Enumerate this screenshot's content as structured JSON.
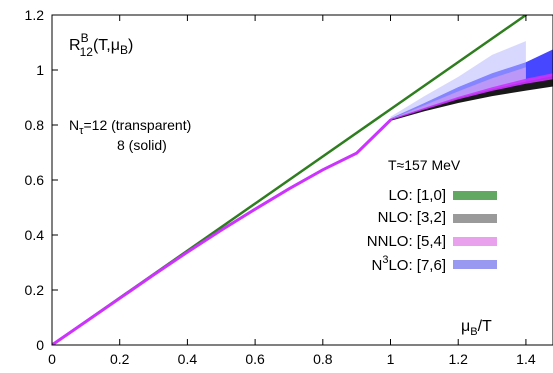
{
  "chart_data": {
    "type": "line",
    "xlabel_main": "μ",
    "xlabel_sub": "B",
    "xlabel_tail": "/T",
    "ylabel": {
      "main": "R",
      "sup": "B",
      "sub": "12",
      "tail_open": "(T,μ",
      "tail_sub": "B",
      "tail_close": ")"
    },
    "xlim": [
      0,
      1.48
    ],
    "ylim": [
      0,
      1.2
    ],
    "xticks": [
      0,
      0.2,
      0.4,
      0.6,
      0.8,
      1,
      1.2,
      1.4
    ],
    "xtick_labels": [
      "0",
      "0.2",
      "0.4",
      "0.6",
      "0.8",
      "1",
      "1.2",
      "1.4"
    ],
    "yticks": [
      0,
      0.2,
      0.4,
      0.6,
      0.8,
      1,
      1.2
    ],
    "ytick_labels": [
      "0",
      "0.2",
      "0.4",
      "0.6",
      "0.8",
      "1",
      "1.2"
    ],
    "annotations": {
      "ntau_line1_main": "N",
      "ntau_line1_sub": "τ",
      "ntau_line1_tail": "=12 (transparent)",
      "ntau_line2": "8 (solid)",
      "temperature": "T≈157 MeV"
    },
    "legend": {
      "position": "right",
      "entries": [
        {
          "label": "LO: [1,0]",
          "color": "#2e8b2e"
        },
        {
          "label": "NLO: [3,2]",
          "color": "#9a9a9a"
        },
        {
          "label": "NNLO: [5,4]",
          "color": "#e58ae8"
        },
        {
          "label_pre": "N",
          "label_sup": "3",
          "label_post": "LO: [7,6]",
          "color": "#8080ee"
        }
      ]
    },
    "series": [
      {
        "name": "LO: [1,0]",
        "color": "#2e7d1e",
        "x": [
          0,
          1.4
        ],
        "y": [
          0,
          1.2
        ]
      },
      {
        "name": "N3LO: [7,6]",
        "color": "#3333ff",
        "x": [
          1.0,
          1.1,
          1.2,
          1.3,
          1.4,
          1.48
        ],
        "lower": [
          0.818,
          0.858,
          0.895,
          0.925,
          0.953,
          0.972
        ],
        "upper": [
          0.824,
          0.88,
          0.938,
          0.988,
          1.028,
          1.075
        ]
      },
      {
        "name": "N3LO: [7,6] transparent",
        "color": "#b8b8ff",
        "x": [
          1.0,
          1.1,
          1.2,
          1.3,
          1.4
        ],
        "lower": [
          0.818,
          0.858,
          0.89,
          0.92,
          0.945
        ],
        "upper": [
          0.83,
          0.905,
          0.975,
          1.055,
          1.105
        ]
      },
      {
        "name": "NNLO: [5,4] transparent",
        "color": "#e8a8f0",
        "x": [
          1.0,
          1.1,
          1.2,
          1.3,
          1.4
        ],
        "lower": [
          0.818,
          0.858,
          0.895,
          0.928,
          0.96
        ],
        "upper": [
          0.822,
          0.872,
          0.922,
          0.97,
          1.01
        ]
      },
      {
        "name": "NLO: [3,2]",
        "color": "#000000",
        "x": [
          1.0,
          1.1,
          1.2,
          1.3,
          1.4,
          1.48
        ],
        "lower": [
          0.815,
          0.85,
          0.88,
          0.905,
          0.925,
          0.94
        ],
        "upper": [
          0.821,
          0.86,
          0.898,
          0.93,
          0.958,
          0.978
        ]
      },
      {
        "name": "NNLO: [5,4]",
        "color": "#cc33ff",
        "x": [
          1.0,
          1.1,
          1.2,
          1.3,
          1.4,
          1.48
        ],
        "lower": [
          0.817,
          0.856,
          0.893,
          0.924,
          0.95,
          0.966
        ],
        "upper": [
          0.821,
          0.862,
          0.902,
          0.937,
          0.968,
          0.988
        ]
      },
      {
        "name": "common curve",
        "color": "#cc33ff",
        "x": [
          0,
          0.1,
          0.2,
          0.3,
          0.4,
          0.5,
          0.6,
          0.7,
          0.8,
          0.9,
          1.0
        ],
        "y": [
          0,
          0.085,
          0.17,
          0.255,
          0.338,
          0.418,
          0.494,
          0.568,
          0.637,
          0.698,
          0.818
        ]
      }
    ],
    "grid": false
  }
}
